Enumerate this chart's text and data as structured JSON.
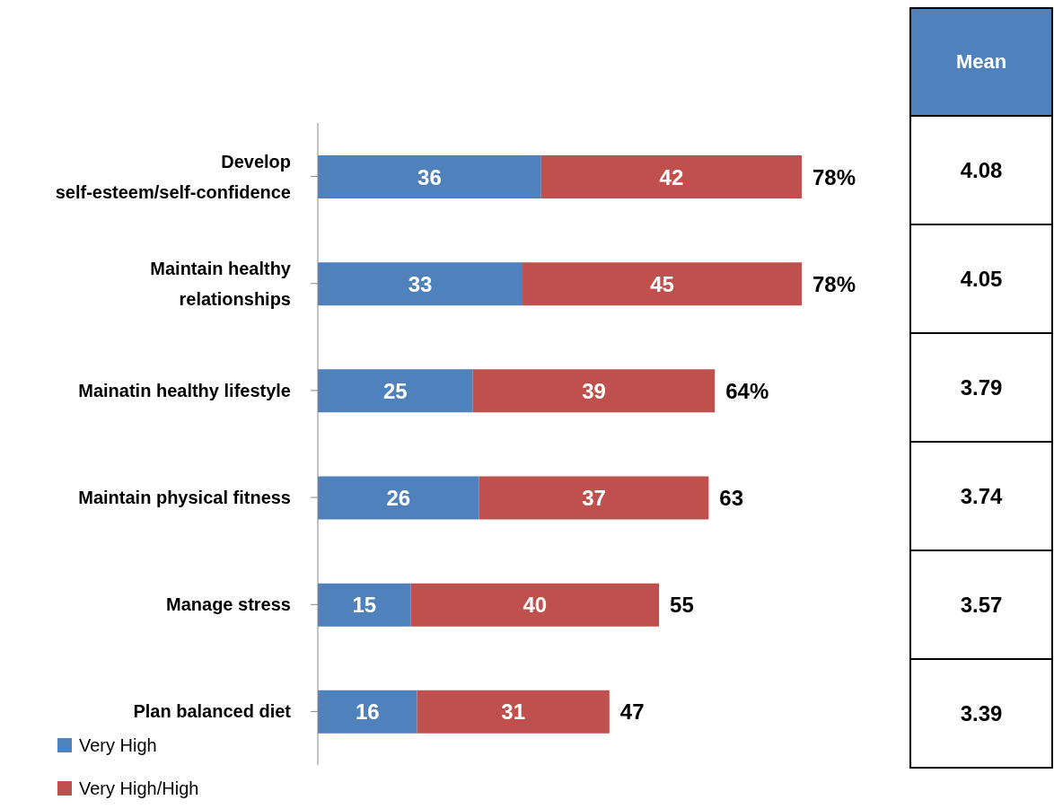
{
  "chart_data": [
    {
      "type": "bar",
      "orientation": "horizontal",
      "stacked": true,
      "categories": [
        "Develop self-esteem/self-confidence",
        "Maintain healthy relationships",
        "Mainatin healthy lifestyle",
        "Maintain physical fitness",
        "Manage stress",
        "Plan balanced diet"
      ],
      "series": [
        {
          "name": "Very High",
          "color": "#4f81bd",
          "values": [
            36,
            33,
            25,
            26,
            15,
            16
          ]
        },
        {
          "name": "Very High/High",
          "color": "#c0504d",
          "values": [
            42,
            45,
            39,
            37,
            40,
            31
          ]
        }
      ],
      "data_labels": true,
      "totals": [
        "78%",
        "78%",
        "64%",
        "63",
        "55",
        "47"
      ],
      "legend": "bottom left",
      "grid": false
    },
    {
      "type": "other",
      "title": "Mean",
      "annotations": [
        "4.08",
        "4.05",
        "3.79",
        "3.74",
        "3.57",
        "3.39"
      ]
    }
  ]
}
